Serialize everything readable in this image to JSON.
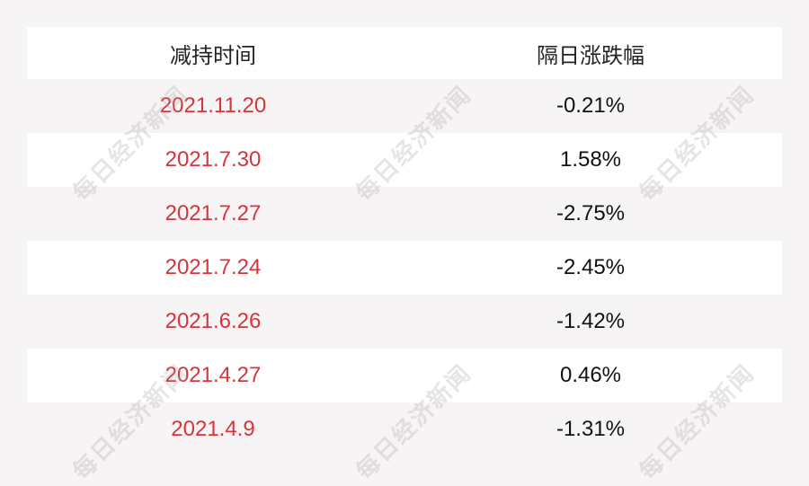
{
  "watermark": "每日经济新闻",
  "colors": {
    "date_text": "#d7343c",
    "value_text": "#111111",
    "background": "#f7f4f5",
    "row_alt": "#ffffff"
  },
  "chart_data": {
    "type": "table",
    "columns": [
      "减持时间",
      "隔日涨跌幅"
    ],
    "rows": [
      [
        "2021.11.20",
        "-0.21%"
      ],
      [
        "2021.7.30",
        "1.58%"
      ],
      [
        "2021.7.27",
        "-2.75%"
      ],
      [
        "2021.7.24",
        "-2.45%"
      ],
      [
        "2021.6.26",
        "-1.42%"
      ],
      [
        "2021.4.27",
        "0.46%"
      ],
      [
        "2021.4.9",
        "-1.31%"
      ]
    ]
  }
}
